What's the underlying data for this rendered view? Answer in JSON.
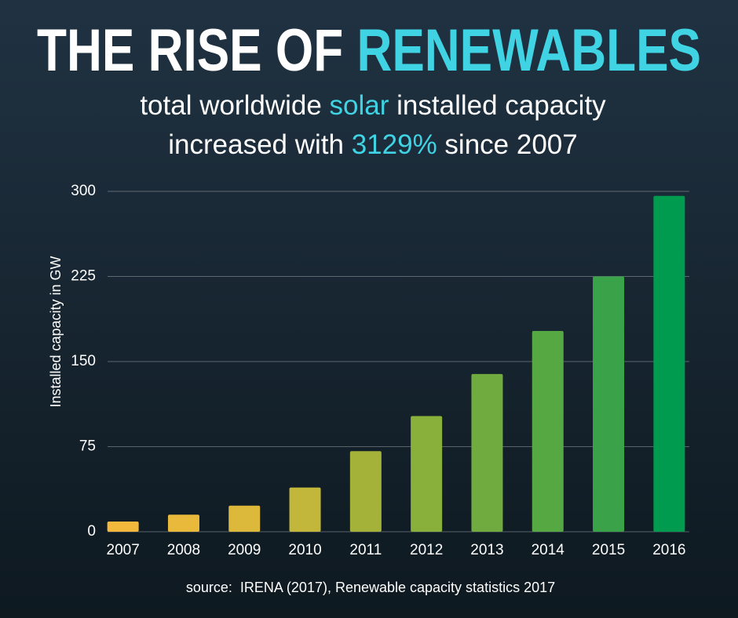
{
  "chart_data": {
    "type": "bar",
    "title": [
      {
        "text": "THE RISE OF ",
        "color": "#ffffff"
      },
      {
        "text": "RENEWABLES",
        "color": "#3fd3e3"
      }
    ],
    "subtitle": [
      [
        {
          "text": "total worldwide ",
          "color": "#ffffff"
        },
        {
          "text": "solar",
          "color": "#3fd3e3"
        },
        {
          "text": " installed capacity",
          "color": "#ffffff"
        }
      ],
      [
        {
          "text": "increased with ",
          "color": "#ffffff"
        },
        {
          "text": "3129%",
          "color": "#3fd3e3"
        },
        {
          "text": " since 2007",
          "color": "#ffffff"
        }
      ]
    ],
    "ylabel": "Installed capacity in GW",
    "source": "source:  IRENA (2017), Renewable capacity statistics 2017",
    "categories": [
      "2007",
      "2008",
      "2009",
      "2010",
      "2011",
      "2012",
      "2013",
      "2014",
      "2015",
      "2016"
    ],
    "values": [
      9,
      15,
      23,
      39,
      71,
      102,
      139,
      177,
      225,
      296
    ],
    "colors": [
      "#f3b93c",
      "#e9b93b",
      "#dcb93a",
      "#c2b73a",
      "#a5b23a",
      "#8ab03c",
      "#6fab3f",
      "#55a842",
      "#3aa248",
      "#009b4f"
    ],
    "ylim": [
      0,
      300
    ],
    "yticks": [
      0,
      75,
      150,
      225,
      300
    ],
    "grid": true
  }
}
